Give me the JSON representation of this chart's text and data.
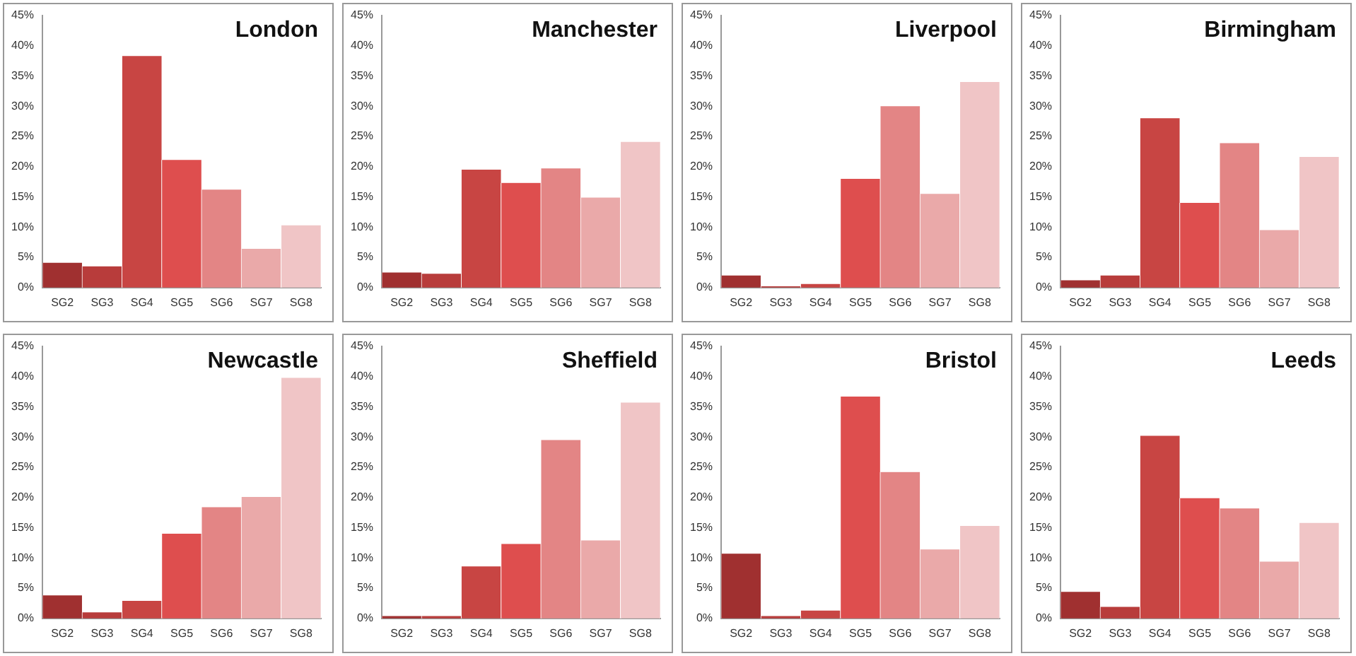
{
  "chart_data": [
    {
      "type": "bar",
      "title": "London",
      "categories": [
        "SG2",
        "SG3",
        "SG4",
        "SG5",
        "SG6",
        "SG7",
        "SG8"
      ],
      "values": [
        4.1,
        3.5,
        38.3,
        21.1,
        16.2,
        6.4,
        10.3
      ],
      "colors": [
        "#a03030",
        "#b83c3b",
        "#c84543",
        "#de4e4e",
        "#e38585",
        "#eaa9a9",
        "#f0c5c6"
      ],
      "ylim": [
        0,
        45
      ],
      "yticks": [
        {
          "value": 0,
          "label": "0%"
        },
        {
          "value": 5,
          "label": "5%"
        },
        {
          "value": 10,
          "label": "10%"
        },
        {
          "value": 15,
          "label": "15%"
        },
        {
          "value": 20,
          "label": "20%"
        },
        {
          "value": 25,
          "label": "25%"
        },
        {
          "value": 30,
          "label": "30%"
        },
        {
          "value": 35,
          "label": "35%"
        },
        {
          "value": 40,
          "label": "40%"
        },
        {
          "value": 45,
          "label": "45%"
        }
      ]
    },
    {
      "type": "bar",
      "title": "Manchester",
      "categories": [
        "SG2",
        "SG3",
        "SG4",
        "SG5",
        "SG6",
        "SG7",
        "SG8"
      ],
      "values": [
        2.5,
        2.3,
        19.5,
        17.3,
        19.7,
        14.9,
        24.1
      ],
      "colors": [
        "#a03030",
        "#b83c3b",
        "#c84543",
        "#de4e4e",
        "#e38585",
        "#eaa9a9",
        "#f0c5c6"
      ],
      "ylim": [
        0,
        45
      ],
      "yticks": [
        {
          "value": 0,
          "label": "0%"
        },
        {
          "value": 5,
          "label": "5%"
        },
        {
          "value": 10,
          "label": "10%"
        },
        {
          "value": 15,
          "label": "15%"
        },
        {
          "value": 20,
          "label": "20%"
        },
        {
          "value": 25,
          "label": "25%"
        },
        {
          "value": 30,
          "label": "30%"
        },
        {
          "value": 35,
          "label": "35%"
        },
        {
          "value": 40,
          "label": "40%"
        },
        {
          "value": 45,
          "label": "45%"
        }
      ]
    },
    {
      "type": "bar",
      "title": "Liverpool",
      "categories": [
        "SG2",
        "SG3",
        "SG4",
        "SG5",
        "SG6",
        "SG7",
        "SG8"
      ],
      "values": [
        2.0,
        0.2,
        0.6,
        18.0,
        30.0,
        15.5,
        34.0
      ],
      "colors": [
        "#a03030",
        "#b83c3b",
        "#c84543",
        "#de4e4e",
        "#e38585",
        "#eaa9a9",
        "#f0c5c6"
      ],
      "ylim": [
        0,
        45
      ],
      "yticks": [
        {
          "value": 0,
          "label": "0%"
        },
        {
          "value": 5,
          "label": "5%"
        },
        {
          "value": 10,
          "label": "10%"
        },
        {
          "value": 15,
          "label": "15%"
        },
        {
          "value": 20,
          "label": "20%"
        },
        {
          "value": 25,
          "label": "25%"
        },
        {
          "value": 30,
          "label": "30%"
        },
        {
          "value": 35,
          "label": "35%"
        },
        {
          "value": 40,
          "label": "40%"
        },
        {
          "value": 45,
          "label": "45%"
        }
      ]
    },
    {
      "type": "bar",
      "title": "Birmingham",
      "categories": [
        "SG2",
        "SG3",
        "SG4",
        "SG5",
        "SG6",
        "SG7",
        "SG8"
      ],
      "values": [
        1.2,
        2.0,
        28.0,
        14.0,
        23.9,
        9.5,
        21.6
      ],
      "colors": [
        "#a03030",
        "#b83c3b",
        "#c84543",
        "#de4e4e",
        "#e38585",
        "#eaa9a9",
        "#f0c5c6"
      ],
      "ylim": [
        0,
        45
      ],
      "yticks": [
        {
          "value": 0,
          "label": "0%"
        },
        {
          "value": 5,
          "label": "5%"
        },
        {
          "value": 10,
          "label": "10%"
        },
        {
          "value": 15,
          "label": "15%"
        },
        {
          "value": 20,
          "label": "20%"
        },
        {
          "value": 25,
          "label": "25%"
        },
        {
          "value": 30,
          "label": "30%"
        },
        {
          "value": 35,
          "label": "35%"
        },
        {
          "value": 40,
          "label": "40%"
        },
        {
          "value": 45,
          "label": "45%"
        }
      ]
    },
    {
      "type": "bar",
      "title": "Newcastle",
      "categories": [
        "SG2",
        "SG3",
        "SG4",
        "SG5",
        "SG6",
        "SG7",
        "SG8"
      ],
      "values": [
        3.8,
        1.0,
        2.9,
        14.0,
        18.4,
        20.1,
        39.8
      ],
      "colors": [
        "#a03030",
        "#b83c3b",
        "#c84543",
        "#de4e4e",
        "#e38585",
        "#eaa9a9",
        "#f0c5c6"
      ],
      "ylim": [
        0,
        45
      ],
      "yticks": [
        {
          "value": 0,
          "label": "0%"
        },
        {
          "value": 5,
          "label": "5%"
        },
        {
          "value": 10,
          "label": "10%"
        },
        {
          "value": 15,
          "label": "15%"
        },
        {
          "value": 20,
          "label": "20%"
        },
        {
          "value": 25,
          "label": "25%"
        },
        {
          "value": 30,
          "label": "30%"
        },
        {
          "value": 35,
          "label": "35%"
        },
        {
          "value": 40,
          "label": "40%"
        },
        {
          "value": 45,
          "label": "45%"
        }
      ]
    },
    {
      "type": "bar",
      "title": "Sheffield",
      "categories": [
        "SG2",
        "SG3",
        "SG4",
        "SG5",
        "SG6",
        "SG7",
        "SG8"
      ],
      "values": [
        0.4,
        0.4,
        8.6,
        12.3,
        29.5,
        12.9,
        35.7
      ],
      "colors": [
        "#a03030",
        "#b83c3b",
        "#c84543",
        "#de4e4e",
        "#e38585",
        "#eaa9a9",
        "#f0c5c6"
      ],
      "ylim": [
        0,
        45
      ],
      "yticks": [
        {
          "value": 0,
          "label": "0%"
        },
        {
          "value": 5,
          "label": "5%"
        },
        {
          "value": 10,
          "label": "10%"
        },
        {
          "value": 15,
          "label": "15%"
        },
        {
          "value": 20,
          "label": "20%"
        },
        {
          "value": 25,
          "label": "25%"
        },
        {
          "value": 30,
          "label": "30%"
        },
        {
          "value": 35,
          "label": "35%"
        },
        {
          "value": 40,
          "label": "40%"
        },
        {
          "value": 45,
          "label": "45%"
        }
      ]
    },
    {
      "type": "bar",
      "title": "Bristol",
      "categories": [
        "SG2",
        "SG3",
        "SG4",
        "SG5",
        "SG6",
        "SG7",
        "SG8"
      ],
      "values": [
        10.7,
        0.4,
        1.3,
        36.7,
        24.2,
        11.4,
        15.3
      ],
      "colors": [
        "#a03030",
        "#b83c3b",
        "#c84543",
        "#de4e4e",
        "#e38585",
        "#eaa9a9",
        "#f0c5c6"
      ],
      "ylim": [
        0,
        45
      ],
      "yticks": [
        {
          "value": 0,
          "label": "0%"
        },
        {
          "value": 5,
          "label": "5%"
        },
        {
          "value": 10,
          "label": "10%"
        },
        {
          "value": 15,
          "label": "15%"
        },
        {
          "value": 20,
          "label": "20%"
        },
        {
          "value": 25,
          "label": "25%"
        },
        {
          "value": 30,
          "label": "30%"
        },
        {
          "value": 35,
          "label": "35%"
        },
        {
          "value": 40,
          "label": "40%"
        },
        {
          "value": 45,
          "label": "45%"
        }
      ]
    },
    {
      "type": "bar",
      "title": "Leeds",
      "categories": [
        "SG2",
        "SG3",
        "SG4",
        "SG5",
        "SG6",
        "SG7",
        "SG8"
      ],
      "values": [
        4.4,
        1.9,
        30.2,
        19.9,
        18.2,
        9.4,
        15.8
      ],
      "colors": [
        "#a03030",
        "#b83c3b",
        "#c84543",
        "#de4e4e",
        "#e38585",
        "#eaa9a9",
        "#f0c5c6"
      ],
      "ylim": [
        0,
        45
      ],
      "yticks": [
        {
          "value": 0,
          "label": "0%"
        },
        {
          "value": 5,
          "label": "5%"
        },
        {
          "value": 10,
          "label": "10%"
        },
        {
          "value": 15,
          "label": "15%"
        },
        {
          "value": 20,
          "label": "20%"
        },
        {
          "value": 25,
          "label": "25%"
        },
        {
          "value": 30,
          "label": "30%"
        },
        {
          "value": 35,
          "label": "35%"
        },
        {
          "value": 40,
          "label": "40%"
        },
        {
          "value": 45,
          "label": "45%"
        }
      ]
    }
  ]
}
